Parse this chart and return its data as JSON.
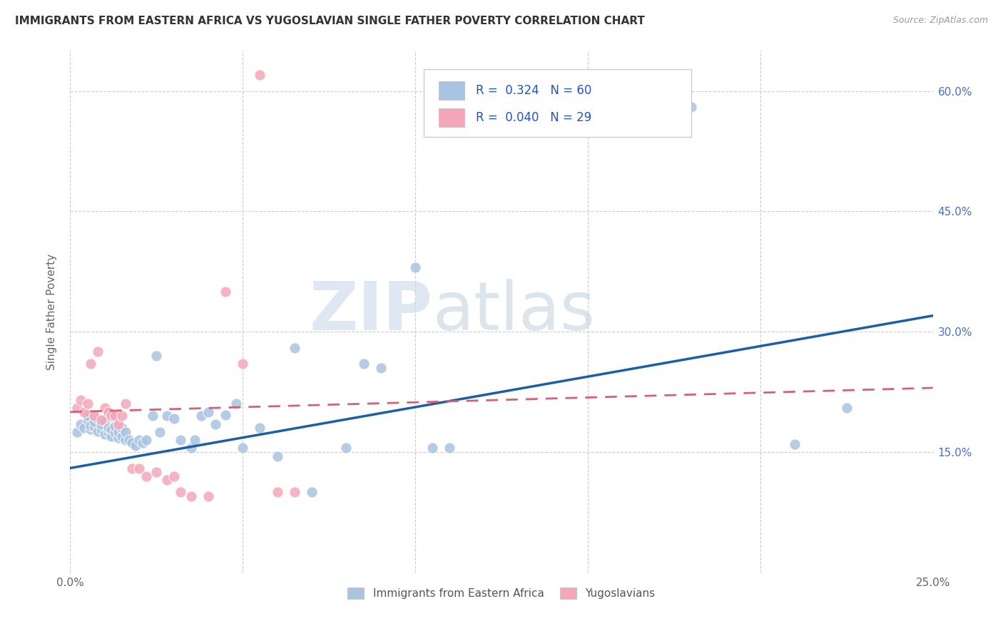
{
  "title": "IMMIGRANTS FROM EASTERN AFRICA VS YUGOSLAVIAN SINGLE FATHER POVERTY CORRELATION CHART",
  "source": "Source: ZipAtlas.com",
  "ylabel": "Single Father Poverty",
  "x_min": 0.0,
  "x_max": 0.25,
  "y_min": 0.0,
  "y_max": 0.65,
  "blue_color": "#a8c4e0",
  "pink_color": "#f4a7b9",
  "blue_line_color": "#1a5fa8",
  "pink_line_color": "#d4607a",
  "legend_R1": "0.324",
  "legend_N1": "60",
  "legend_R2": "0.040",
  "legend_N2": "29",
  "legend_label1": "Immigrants from Eastern Africa",
  "legend_label2": "Yugoslavians",
  "watermark_zip": "ZIP",
  "watermark_atlas": "atlas",
  "blue_scatter_x": [
    0.002,
    0.003,
    0.004,
    0.005,
    0.005,
    0.006,
    0.006,
    0.007,
    0.007,
    0.008,
    0.008,
    0.009,
    0.009,
    0.01,
    0.01,
    0.011,
    0.011,
    0.012,
    0.012,
    0.013,
    0.013,
    0.014,
    0.014,
    0.015,
    0.015,
    0.016,
    0.016,
    0.017,
    0.018,
    0.019,
    0.02,
    0.021,
    0.022,
    0.024,
    0.025,
    0.026,
    0.028,
    0.03,
    0.032,
    0.035,
    0.036,
    0.038,
    0.04,
    0.042,
    0.045,
    0.048,
    0.05,
    0.055,
    0.06,
    0.065,
    0.07,
    0.08,
    0.085,
    0.09,
    0.1,
    0.105,
    0.11,
    0.18,
    0.21,
    0.225
  ],
  "blue_scatter_y": [
    0.175,
    0.185,
    0.18,
    0.19,
    0.195,
    0.178,
    0.183,
    0.182,
    0.188,
    0.176,
    0.192,
    0.178,
    0.185,
    0.172,
    0.188,
    0.175,
    0.18,
    0.17,
    0.178,
    0.175,
    0.182,
    0.168,
    0.175,
    0.17,
    0.18,
    0.165,
    0.175,
    0.165,
    0.162,
    0.158,
    0.165,
    0.162,
    0.165,
    0.195,
    0.27,
    0.175,
    0.195,
    0.192,
    0.165,
    0.155,
    0.165,
    0.195,
    0.2,
    0.185,
    0.196,
    0.21,
    0.155,
    0.18,
    0.145,
    0.28,
    0.1,
    0.155,
    0.26,
    0.255,
    0.38,
    0.155,
    0.155,
    0.58,
    0.16,
    0.205
  ],
  "pink_scatter_x": [
    0.002,
    0.003,
    0.004,
    0.005,
    0.006,
    0.007,
    0.008,
    0.009,
    0.01,
    0.011,
    0.012,
    0.013,
    0.014,
    0.015,
    0.016,
    0.018,
    0.02,
    0.022,
    0.025,
    0.028,
    0.03,
    0.032,
    0.035,
    0.04,
    0.045,
    0.05,
    0.055,
    0.06,
    0.065
  ],
  "pink_scatter_y": [
    0.205,
    0.215,
    0.2,
    0.21,
    0.26,
    0.195,
    0.275,
    0.19,
    0.205,
    0.2,
    0.195,
    0.195,
    0.185,
    0.195,
    0.21,
    0.13,
    0.13,
    0.12,
    0.125,
    0.115,
    0.12,
    0.1,
    0.095,
    0.095,
    0.35,
    0.26,
    0.62,
    0.1,
    0.1
  ],
  "blue_line_x": [
    0.0,
    0.25
  ],
  "blue_line_y": [
    0.13,
    0.32
  ],
  "pink_line_x": [
    0.0,
    0.25
  ],
  "pink_line_y": [
    0.2,
    0.23
  ]
}
